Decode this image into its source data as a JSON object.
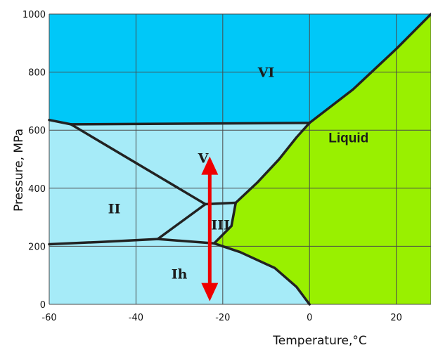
{
  "chart_data": {
    "type": "phase-diagram",
    "xlabel": "Temperature,°C",
    "ylabel": "Pressure, MPa",
    "xlim": [
      -60,
      28
    ],
    "ylim": [
      0,
      1000
    ],
    "x_ticks": [
      -60,
      -40,
      -20,
      0,
      20
    ],
    "x_tick_labels": [
      "-60",
      "-40",
      "-20",
      "0",
      "20"
    ],
    "y_ticks": [
      0,
      200,
      400,
      600,
      800,
      1000
    ],
    "y_tick_labels": [
      "0",
      "200",
      "400",
      "600",
      "800",
      "1000"
    ],
    "grid": true,
    "colors": {
      "ice_vi": "#00c8f8",
      "ice": "#a6ebf8",
      "liquid": "#99f000",
      "boundary": "#222222",
      "grid": "#4a4a4a",
      "arrow": "#ee0000"
    },
    "regions": [
      {
        "label": "VI",
        "x": -10,
        "y": 800
      },
      {
        "label": "Liquid",
        "x": 9,
        "y": 575
      },
      {
        "label": "V",
        "x": -24.5,
        "y": 505
      },
      {
        "label": "II",
        "x": -45,
        "y": 330
      },
      {
        "label": "III",
        "x": -20.5,
        "y": 275
      },
      {
        "label": "Ih",
        "x": -30,
        "y": 105
      }
    ],
    "boundaries": [
      {
        "name": "liquid-vi",
        "x": [
          0,
          10,
          20,
          28
        ],
        "y": [
          625,
          740,
          880,
          1000
        ]
      },
      {
        "name": "vi-v",
        "x": [
          -55,
          0
        ],
        "y": [
          620,
          625
        ]
      },
      {
        "name": "upper-left-edge",
        "x": [
          -60,
          -55
        ],
        "y": [
          635,
          620
        ]
      },
      {
        "name": "liquid-v",
        "x": [
          -17,
          -12,
          -7,
          -3,
          0
        ],
        "y": [
          350,
          420,
          500,
          575,
          625
        ]
      },
      {
        "name": "ii-v",
        "x": [
          -55,
          -24
        ],
        "y": [
          620,
          345
        ]
      },
      {
        "name": "v-iii",
        "x": [
          -24,
          -17
        ],
        "y": [
          345,
          350
        ]
      },
      {
        "name": "ii-iii",
        "x": [
          -35,
          -24
        ],
        "y": [
          225,
          345
        ]
      },
      {
        "name": "liquid-iii",
        "x": [
          -22,
          -18,
          -17
        ],
        "y": [
          210,
          270,
          350
        ]
      },
      {
        "name": "ii-ih",
        "x": [
          -60,
          -48,
          -35
        ],
        "y": [
          207,
          215,
          225
        ]
      },
      {
        "name": "iii-ih",
        "x": [
          -35,
          -22
        ],
        "y": [
          225,
          210
        ]
      },
      {
        "name": "liquid-ih",
        "x": [
          -22,
          -16,
          -8,
          -3,
          0
        ],
        "y": [
          210,
          180,
          125,
          60,
          0
        ]
      }
    ],
    "arrow": {
      "x": -23,
      "y_start": 490,
      "y_end": 30,
      "double_headed": true
    }
  }
}
